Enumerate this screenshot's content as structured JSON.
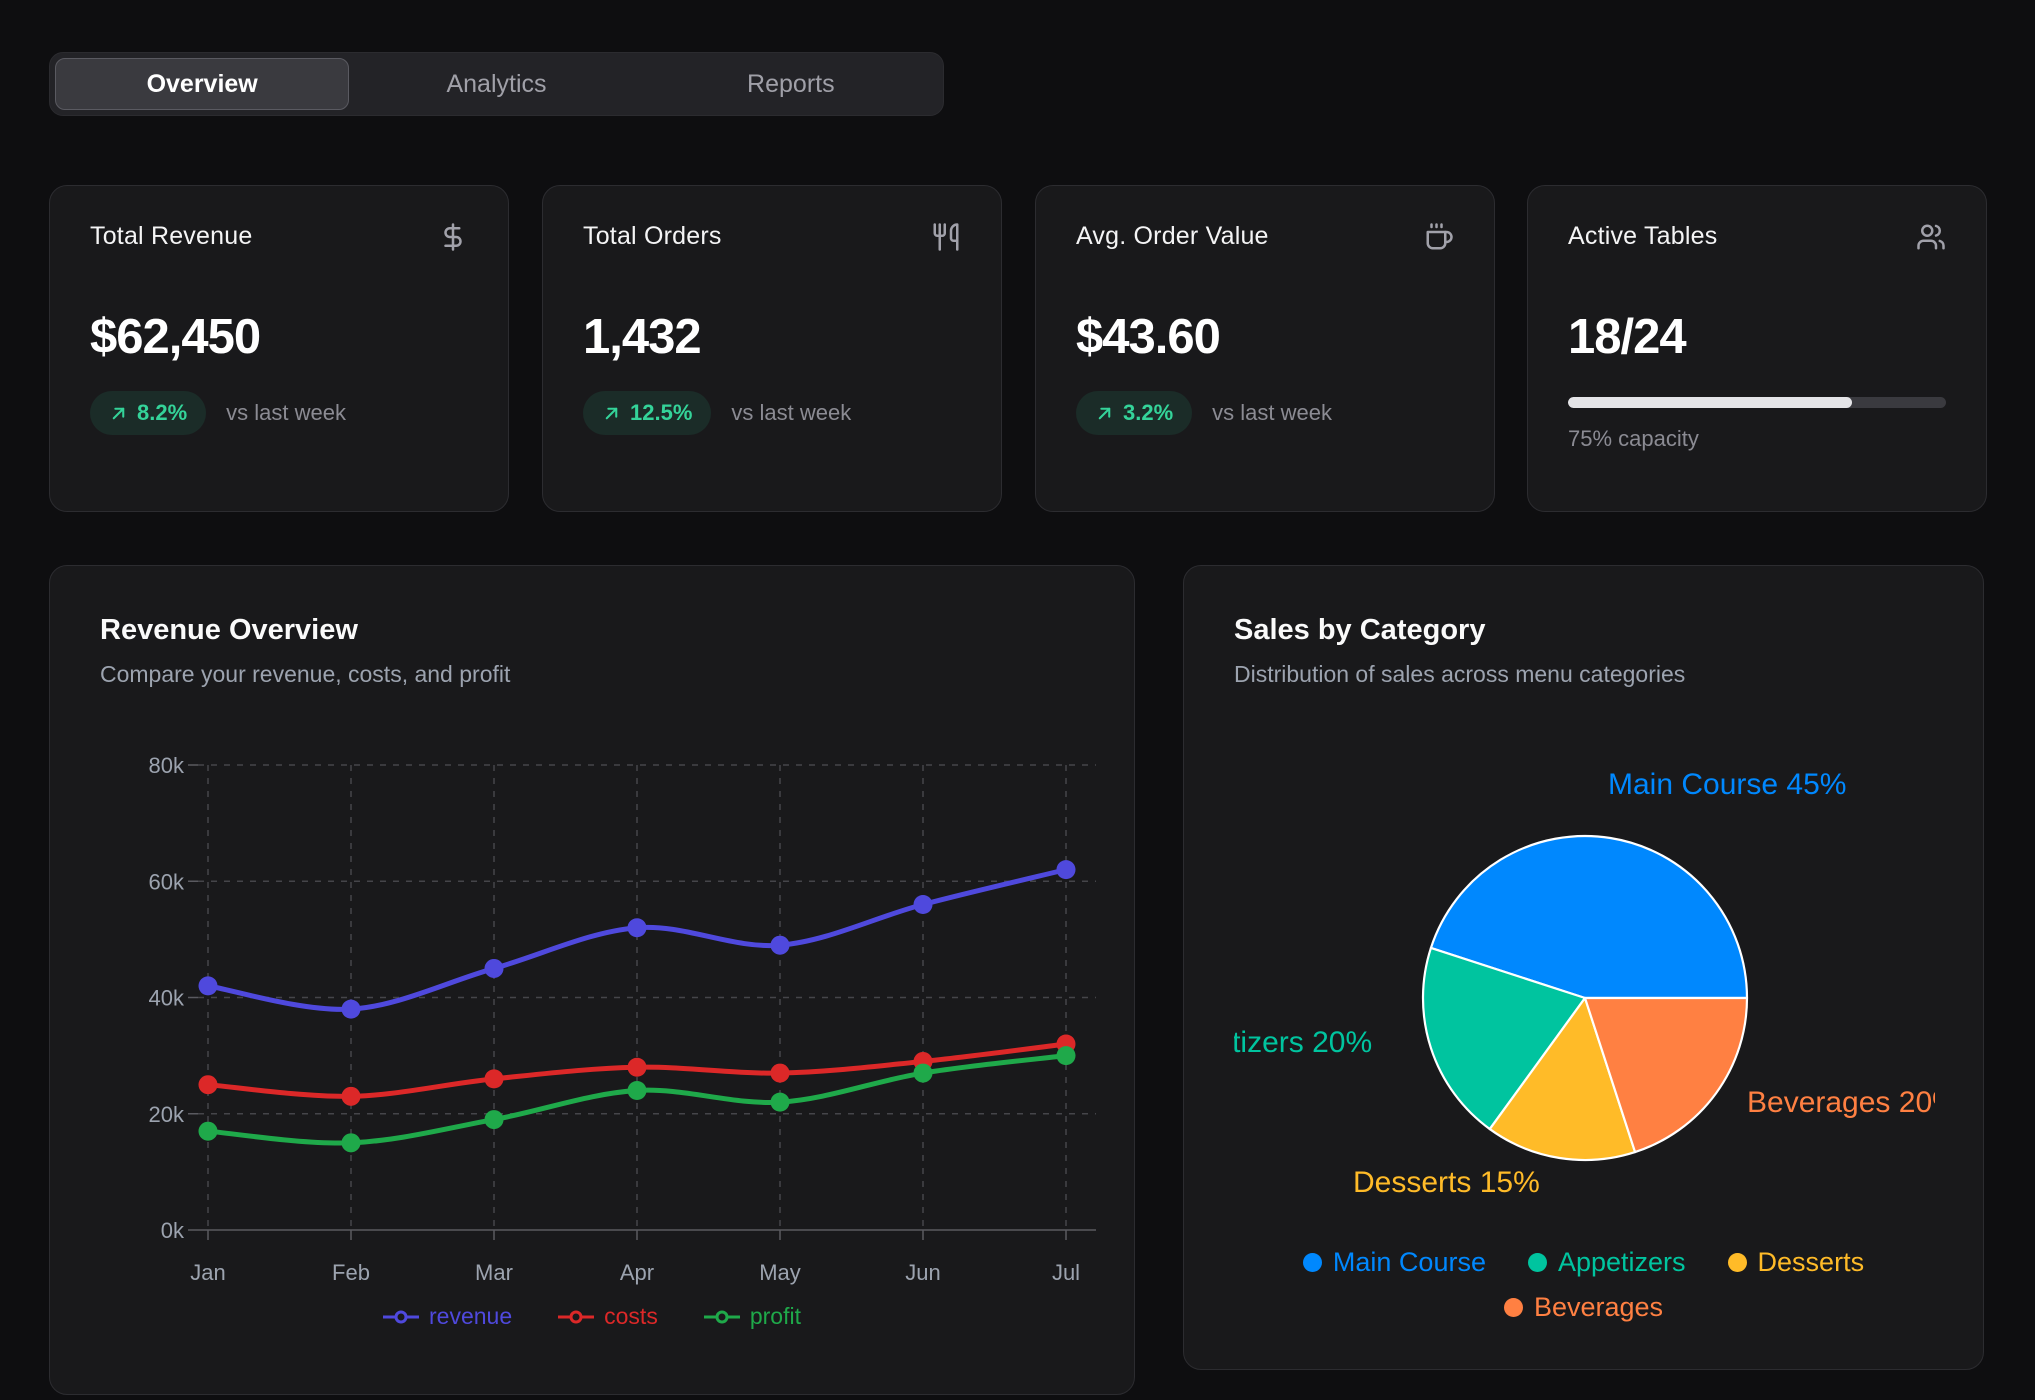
{
  "tabs": [
    {
      "label": "Overview",
      "selected": true
    },
    {
      "label": "Analytics",
      "selected": false
    },
    {
      "label": "Reports",
      "selected": false
    }
  ],
  "stats": [
    {
      "title": "Total Revenue",
      "icon": "dollar-icon",
      "value": "$62,450",
      "change": "8.2%",
      "change_note": "vs last week"
    },
    {
      "title": "Total Orders",
      "icon": "utensils-icon",
      "value": "1,432",
      "change": "12.5%",
      "change_note": "vs last week"
    },
    {
      "title": "Avg. Order Value",
      "icon": "coffee-icon",
      "value": "$43.60",
      "change": "3.2%",
      "change_note": "vs last week"
    },
    {
      "title": "Active Tables",
      "icon": "users-icon",
      "value": "18/24",
      "capacity_pct": 75,
      "capacity_label": "75% capacity"
    }
  ],
  "colors": {
    "positive": "#34d399",
    "progress_fill": "#e4e4e7"
  },
  "charts": {
    "revenue": {
      "title": "Revenue Overview",
      "subtitle": "Compare your revenue, costs, and profit"
    },
    "category": {
      "title": "Sales by Category",
      "subtitle": "Distribution of sales across menu categories"
    }
  },
  "chart_data": [
    {
      "type": "line",
      "title": "Revenue Overview",
      "x": [
        "Jan",
        "Feb",
        "Mar",
        "Apr",
        "May",
        "Jun",
        "Jul"
      ],
      "series": [
        {
          "name": "revenue",
          "color": "#4f49dd",
          "values": [
            42000,
            38000,
            45000,
            52000,
            49000,
            56000,
            62000
          ]
        },
        {
          "name": "costs",
          "color": "#dc2828",
          "values": [
            25000,
            23000,
            26000,
            28000,
            27000,
            29000,
            32000
          ]
        },
        {
          "name": "profit",
          "color": "#1fa94a",
          "values": [
            17000,
            15000,
            19000,
            24000,
            22000,
            27000,
            30000
          ]
        }
      ],
      "ylim": [
        0,
        80000
      ],
      "yticks": [
        "0k",
        "20k",
        "40k",
        "60k",
        "80k"
      ],
      "grid": true,
      "legend_position": "bottom"
    },
    {
      "type": "pie",
      "title": "Sales by Category",
      "slices": [
        {
          "label": "Main Course",
          "pct": 45,
          "color": "#0088FE"
        },
        {
          "label": "Appetizers",
          "pct": 20,
          "color": "#00C49F"
        },
        {
          "label": "Desserts",
          "pct": 15,
          "color": "#FFBB28"
        },
        {
          "label": "Beverages",
          "pct": 20,
          "color": "#FF8042"
        }
      ],
      "label_format": "{label} {pct}%",
      "legend_position": "bottom"
    }
  ]
}
